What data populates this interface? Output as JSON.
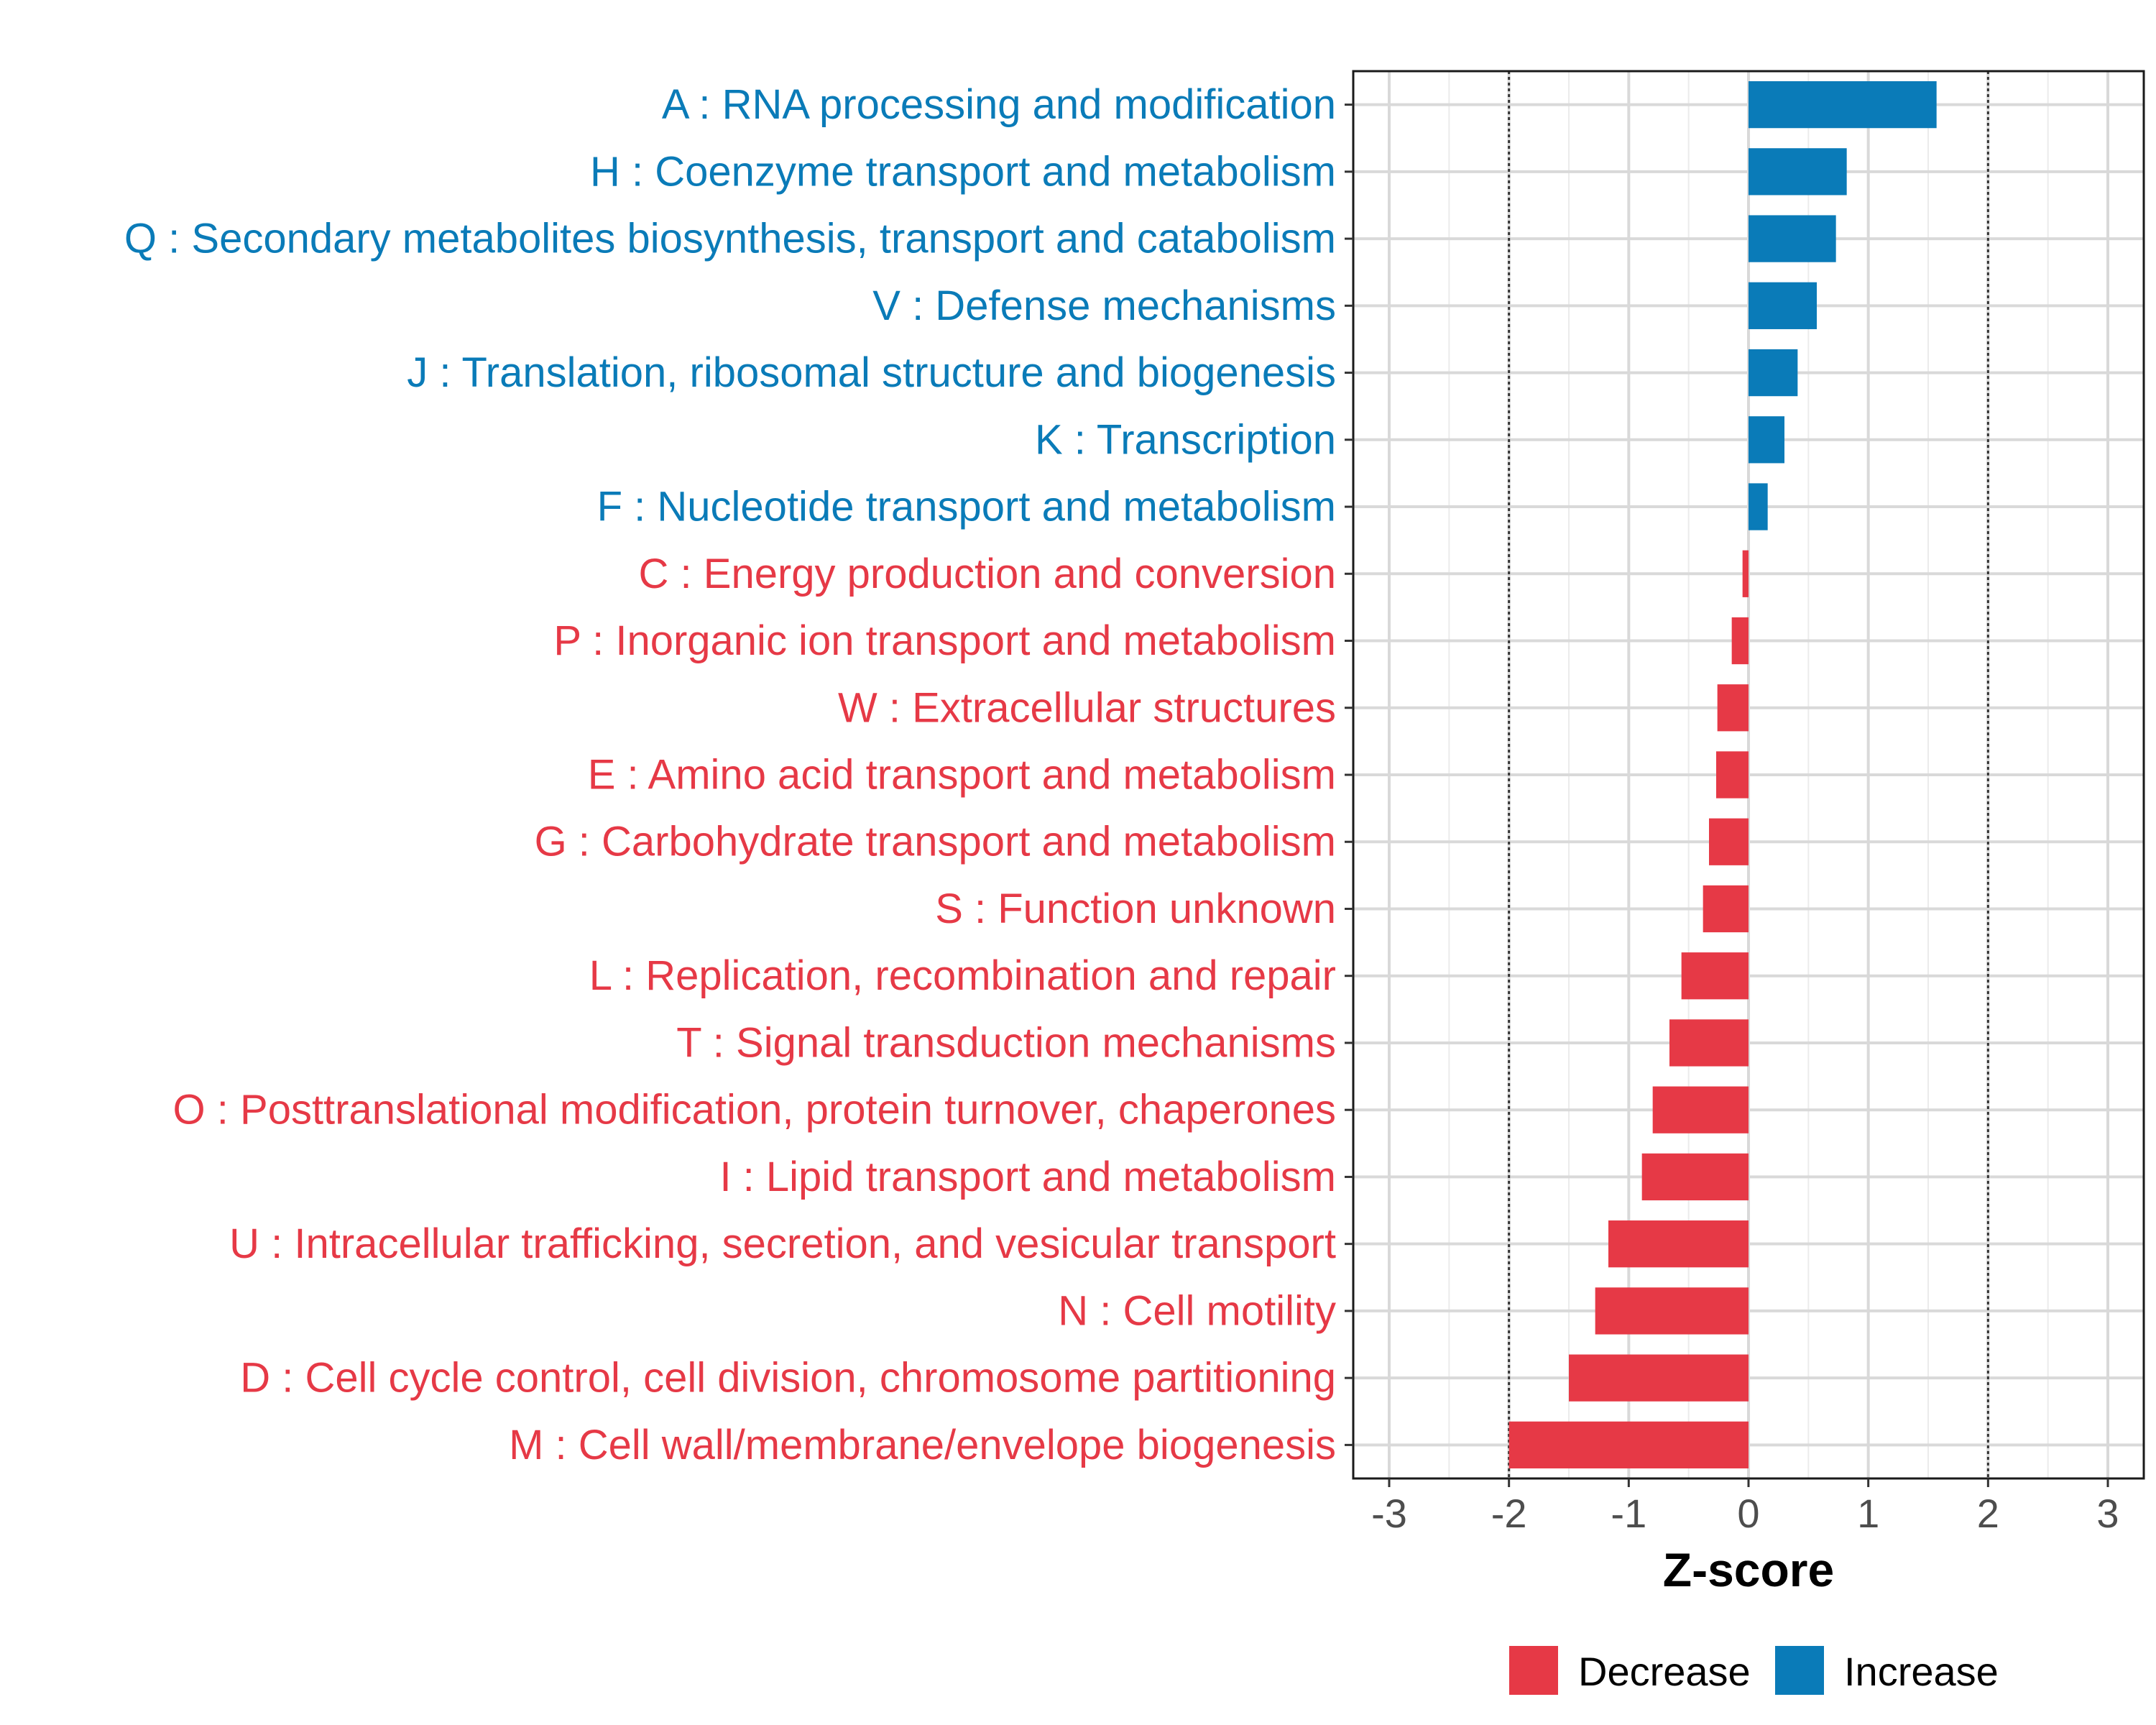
{
  "chart_data": {
    "type": "bar",
    "orientation": "horizontal",
    "xlabel": "Z-score",
    "ylabel": "",
    "xlim": [
      -3.3,
      3.3
    ],
    "xticks": [
      -3,
      -2,
      -1,
      0,
      1,
      2,
      3
    ],
    "reference_lines": [
      -2,
      2
    ],
    "grid": true,
    "legend_position": "bottom",
    "colors": {
      "Decrease": "#E63946",
      "Increase": "#0A7BB8"
    },
    "categories": [
      "A : RNA processing and modification",
      "H : Coenzyme transport and metabolism",
      "Q : Secondary metabolites biosynthesis, transport and catabolism",
      "V : Defense mechanisms",
      "J : Translation, ribosomal structure and biogenesis",
      "K : Transcription",
      "F : Nucleotide transport and metabolism",
      "C : Energy production and conversion",
      "P : Inorganic ion transport and metabolism",
      "W : Extracellular structures",
      "E : Amino acid transport and metabolism",
      "G : Carbohydrate transport and metabolism",
      "S : Function unknown",
      "L : Replication, recombination and repair",
      "T : Signal transduction mechanisms",
      "O : Posttranslational modification, protein turnover, chaperones",
      "I : Lipid transport and metabolism",
      "U : Intracellular trafficking, secretion, and vesicular transport",
      "N : Cell motility",
      "D : Cell cycle control, cell division, chromosome partitioning",
      "M : Cell wall/membrane/envelope biogenesis"
    ],
    "values": [
      1.57,
      0.82,
      0.73,
      0.57,
      0.41,
      0.3,
      0.16,
      -0.05,
      -0.14,
      -0.26,
      -0.27,
      -0.33,
      -0.38,
      -0.56,
      -0.66,
      -0.8,
      -0.89,
      -1.17,
      -1.28,
      -1.5,
      -2.0
    ],
    "groups": [
      "Increase",
      "Increase",
      "Increase",
      "Increase",
      "Increase",
      "Increase",
      "Increase",
      "Decrease",
      "Decrease",
      "Decrease",
      "Decrease",
      "Decrease",
      "Decrease",
      "Decrease",
      "Decrease",
      "Decrease",
      "Decrease",
      "Decrease",
      "Decrease",
      "Decrease",
      "Decrease"
    ],
    "legend": [
      "Decrease",
      "Increase"
    ]
  }
}
